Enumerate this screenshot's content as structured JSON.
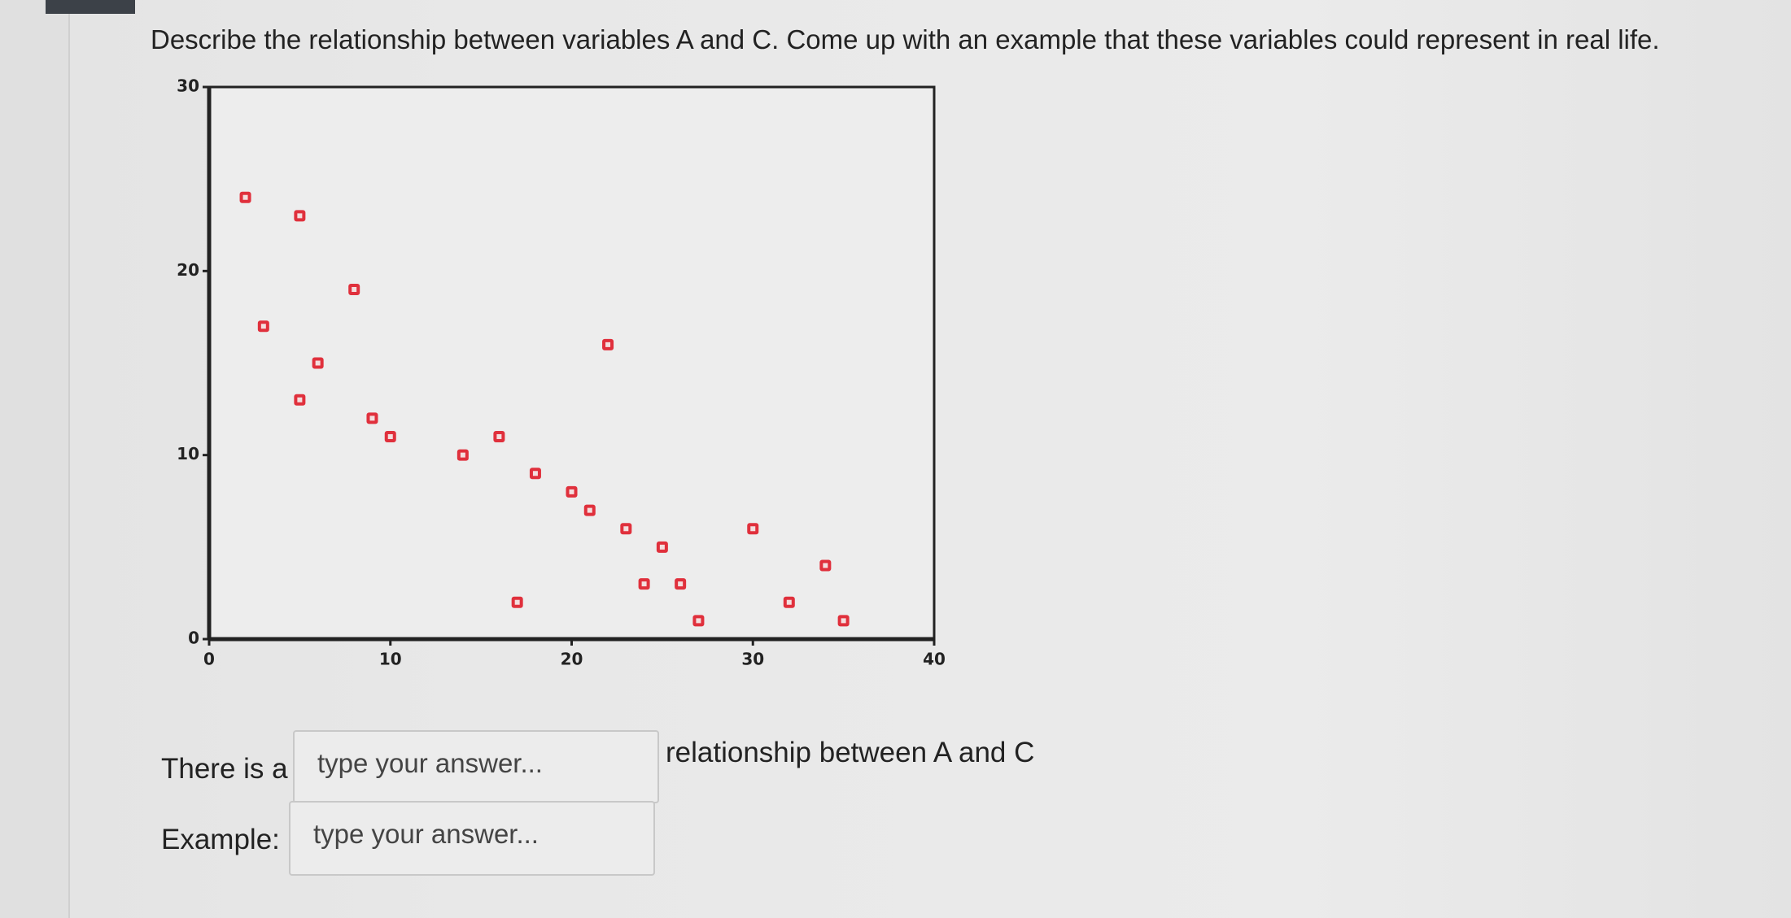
{
  "question": "Describe the relationship between variables A and C. Come up with an example that these variables could represent in real life.",
  "chart_data": {
    "type": "scatter",
    "color": "#e0303c",
    "x": [
      2,
      5,
      3,
      8,
      6,
      5,
      9,
      10,
      14,
      16,
      18,
      20,
      21,
      22,
      23,
      25,
      24,
      26,
      17,
      27,
      30,
      32,
      34,
      35
    ],
    "values": [
      24,
      23,
      17,
      19,
      15,
      13,
      12,
      11,
      10,
      11,
      9,
      8,
      7,
      16,
      6,
      5,
      3,
      3,
      2,
      1,
      6,
      2,
      4,
      1
    ],
    "xlim": [
      0,
      40
    ],
    "xticks": [
      0,
      10,
      20,
      30,
      40
    ],
    "ylim": [
      0,
      30
    ],
    "yticks": [
      0,
      10,
      20,
      30
    ]
  },
  "form": {
    "rows": [
      {
        "label": "There is a",
        "placeholder": "type your answer...",
        "after": "relationship between A and C"
      },
      {
        "label": "Example:",
        "placeholder": "type your answer..."
      }
    ]
  }
}
